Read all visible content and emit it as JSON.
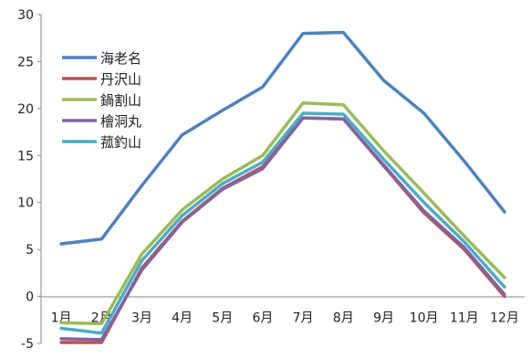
{
  "chart_data": {
    "type": "line",
    "categories": [
      "1月",
      "2月",
      "3月",
      "4月",
      "5月",
      "6月",
      "7月",
      "8月",
      "9月",
      "10月",
      "11月",
      "12月"
    ],
    "ylim": [
      -5,
      30
    ],
    "yticks": [
      -5,
      0,
      5,
      10,
      15,
      20,
      25,
      30
    ],
    "grid": false,
    "legend_position": "top-left",
    "series": [
      {
        "name": "海老名",
        "color": "#4f81bd",
        "values": [
          5.6,
          6.1,
          11.8,
          17.2,
          19.8,
          22.3,
          28.0,
          28.1,
          23.0,
          19.5,
          14.4,
          9.0
        ]
      },
      {
        "name": "丹沢山",
        "color": "#c0504d",
        "values": [
          -4.9,
          -4.9,
          3.0,
          8.0,
          11.5,
          13.8,
          19.0,
          18.9,
          13.9,
          8.9,
          5.0,
          0.0
        ]
      },
      {
        "name": "鍋割山",
        "color": "#9bbb59",
        "values": [
          -2.8,
          -2.9,
          4.5,
          9.2,
          12.5,
          15.0,
          20.6,
          20.4,
          15.5,
          11.0,
          6.4,
          2.0
        ]
      },
      {
        "name": "檜洞丸",
        "color": "#8064a2",
        "values": [
          -4.5,
          -4.6,
          2.8,
          7.9,
          11.4,
          13.6,
          19.0,
          18.9,
          14.0,
          9.1,
          5.2,
          0.2
        ]
      },
      {
        "name": "菰釣山",
        "color": "#4bacc6",
        "values": [
          -3.4,
          -3.9,
          3.8,
          8.6,
          12.0,
          14.3,
          19.5,
          19.4,
          14.6,
          10.0,
          5.8,
          1.0
        ]
      }
    ]
  }
}
